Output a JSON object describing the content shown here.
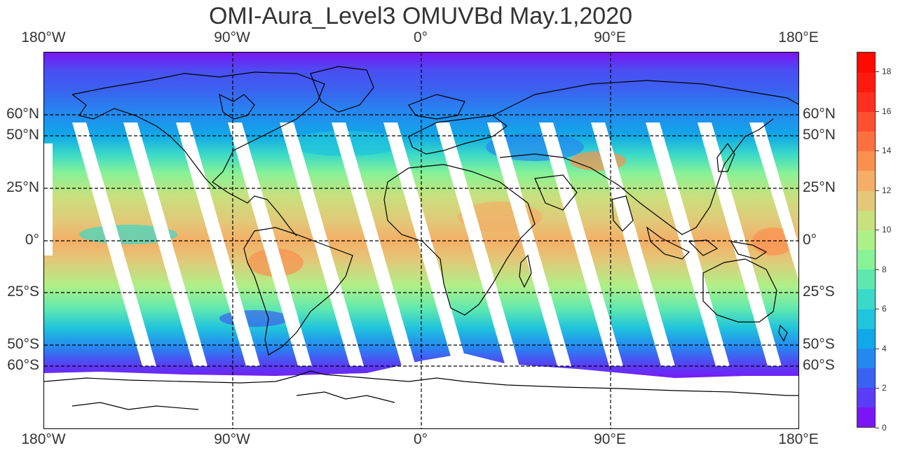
{
  "title": "OMI-Aura_Level3 OMUVBd May.1,2020",
  "lon_labels": [
    "180°W",
    "90°W",
    "0°",
    "90°E",
    "180°E"
  ],
  "lat_labels": [
    "60°N",
    "50°N",
    "25°N",
    "0°",
    "25°S",
    "50°S",
    "60°S"
  ],
  "colorbar": {
    "ticks": [
      "0",
      "2",
      "4",
      "6",
      "8",
      "10",
      "12",
      "14",
      "16",
      "18"
    ],
    "tick_values": [
      0,
      2,
      4,
      6,
      8,
      10,
      12,
      14,
      16,
      18
    ],
    "range": [
      0,
      19
    ],
    "colors": [
      "#7a16f5",
      "#5a3df5",
      "#3a62f0",
      "#2588f0",
      "#10a8e8",
      "#20c4dc",
      "#3ad9c8",
      "#5ee8b0",
      "#88f296",
      "#aef088",
      "#c8e07e",
      "#e2c878",
      "#f4ae66",
      "#fa9050",
      "#fc7040",
      "#fe5030",
      "#ff3020",
      "#ff1a10",
      "#ff0a00"
    ]
  },
  "map": {
    "projection": "plate carree",
    "lon_range": [
      -180,
      180
    ],
    "lat_range": [
      -90,
      90
    ],
    "gridlines_lon": [
      -180,
      -90,
      0,
      90,
      180
    ],
    "gridlines_lat": [
      60,
      50,
      25,
      0,
      -25,
      -50,
      -60
    ],
    "gridline_style": "dashed"
  }
}
